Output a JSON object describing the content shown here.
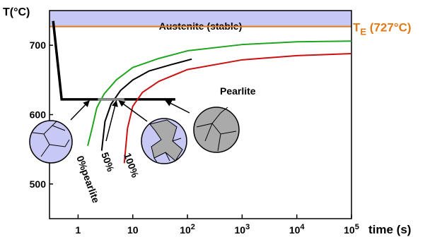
{
  "chart_data": {
    "type": "line",
    "ylabel": "T(°C)",
    "xlabel": "time (s)",
    "x_scale": "log",
    "xlim": [
      0.3,
      100000
    ],
    "ylim": [
      450,
      750
    ],
    "x_ticks": [
      {
        "value": 1,
        "label": "1"
      },
      {
        "value": 10,
        "label": "10"
      },
      {
        "value": 100,
        "base": "10",
        "exp": "2"
      },
      {
        "value": 1000,
        "base": "10",
        "exp": "3"
      },
      {
        "value": 10000,
        "base": "10",
        "exp": "4"
      },
      {
        "value": 100000,
        "base": "10",
        "exp": "5"
      }
    ],
    "y_ticks": [
      {
        "value": 500,
        "label": "500"
      },
      {
        "value": 600,
        "label": "600"
      },
      {
        "value": 700,
        "label": "700"
      }
    ],
    "region_label": "Austenite (stable)",
    "eutectoid": {
      "value": 727,
      "label_main": "T",
      "label_sub": "E",
      "label_rest": " (727°C)",
      "color": "#e07b1a"
    },
    "region_color": "#c8c8f5",
    "series": [
      {
        "name": "0%pearlite",
        "color": "#1fa51f",
        "x": [
          1.5,
          1.8,
          2.2,
          3,
          5,
          10,
          30,
          100,
          1000,
          10000,
          100000
        ],
        "y": [
          555,
          580,
          610,
          630,
          650,
          668,
          681,
          692,
          701,
          705,
          706
        ]
      },
      {
        "name": "50%",
        "color": "#000000",
        "x": [
          2.7,
          3.1,
          4,
          6,
          10,
          20,
          50,
          120
        ],
        "y": [
          548,
          590,
          615,
          635,
          650,
          663,
          672,
          680
        ]
      },
      {
        "name": "100%",
        "color": "#cc1111",
        "x": [
          7,
          8,
          10,
          15,
          30,
          100,
          1000,
          10000,
          100000
        ],
        "y": [
          530,
          580,
          612,
          632,
          648,
          665,
          679,
          685,
          688
        ]
      }
    ],
    "isothermal_path": {
      "temperature": 622,
      "x_start": 0.35,
      "x_end": 60,
      "drop_start_y": 735,
      "color": "#000000"
    },
    "transforming_band": {
      "x_start": 2.3,
      "x_end": 7,
      "color": "#888888"
    },
    "annotation": "Pearlite"
  }
}
